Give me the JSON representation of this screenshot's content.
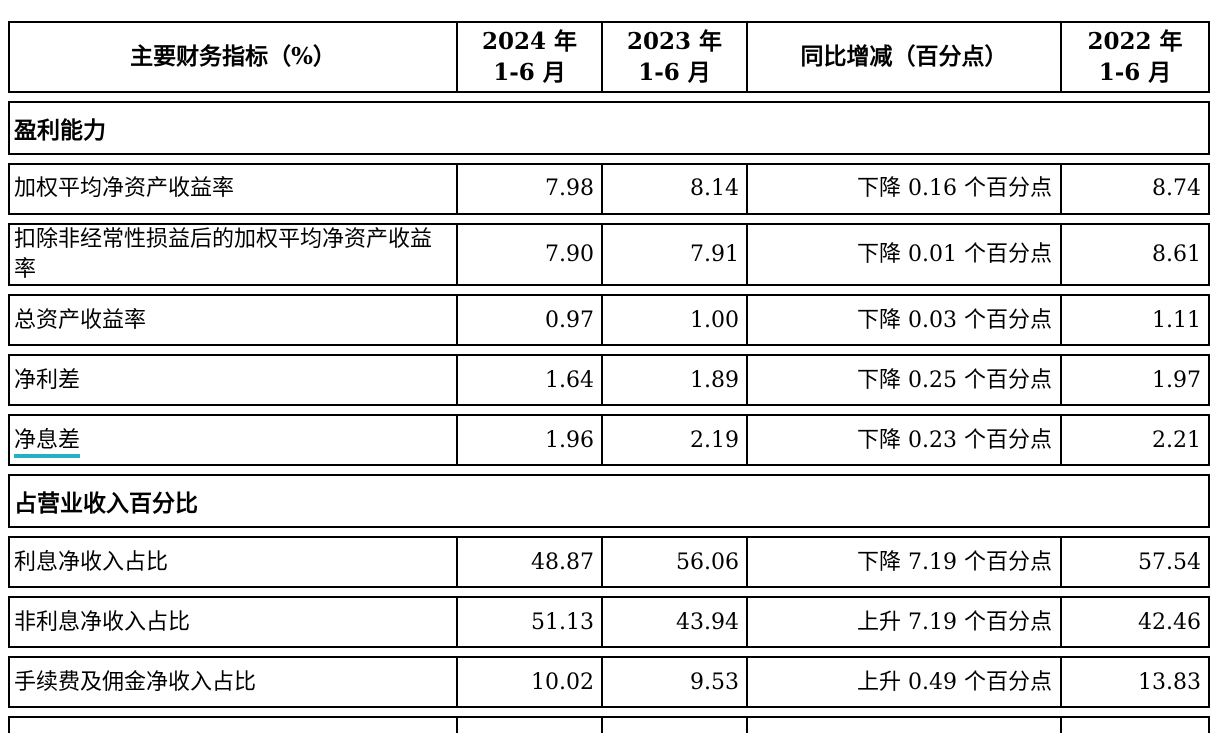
{
  "accent": {
    "underline_color": "#23b2c4",
    "border_color": "#000000",
    "background": "#ffffff",
    "text_color": "#000000"
  },
  "table": {
    "columns": [
      "主要财务指标（%）",
      "2024 年\n1-6 月",
      "2023 年\n1-6 月",
      "同比增减（百分点）",
      "2022 年\n1-6 月"
    ],
    "sections": [
      {
        "title": "盈利能力",
        "rows": [
          {
            "cells": [
              "加权平均净资产收益率",
              "7.98",
              "8.14",
              "下降 0.16 个百分点",
              "8.74"
            ]
          },
          {
            "cells": [
              "扣除非经常性损益后的加权平均净资产收益率",
              "7.90",
              "7.91",
              "下降 0.01 个百分点",
              "8.61"
            ]
          },
          {
            "cells": [
              "总资产收益率",
              "0.97",
              "1.00",
              "下降 0.03 个百分点",
              "1.11"
            ]
          },
          {
            "cells": [
              "净利差",
              "1.64",
              "1.89",
              "下降 0.25 个百分点",
              "1.97"
            ]
          },
          {
            "cells": [
              "净息差",
              "1.96",
              "2.19",
              "下降 0.23 个百分点",
              "2.21"
            ],
            "label_underline": true
          }
        ]
      },
      {
        "title": "占营业收入百分比",
        "rows": [
          {
            "cells": [
              "利息净收入占比",
              "48.87",
              "56.06",
              "下降 7.19 个百分点",
              "57.54"
            ]
          },
          {
            "cells": [
              "非利息净收入占比",
              "51.13",
              "43.94",
              "上升 7.19 个百分点",
              "42.46"
            ]
          },
          {
            "cells": [
              "手续费及佣金净收入占比",
              "10.02",
              "9.53",
              "上升 0.49 个百分点",
              "13.83"
            ]
          }
        ]
      }
    ]
  }
}
